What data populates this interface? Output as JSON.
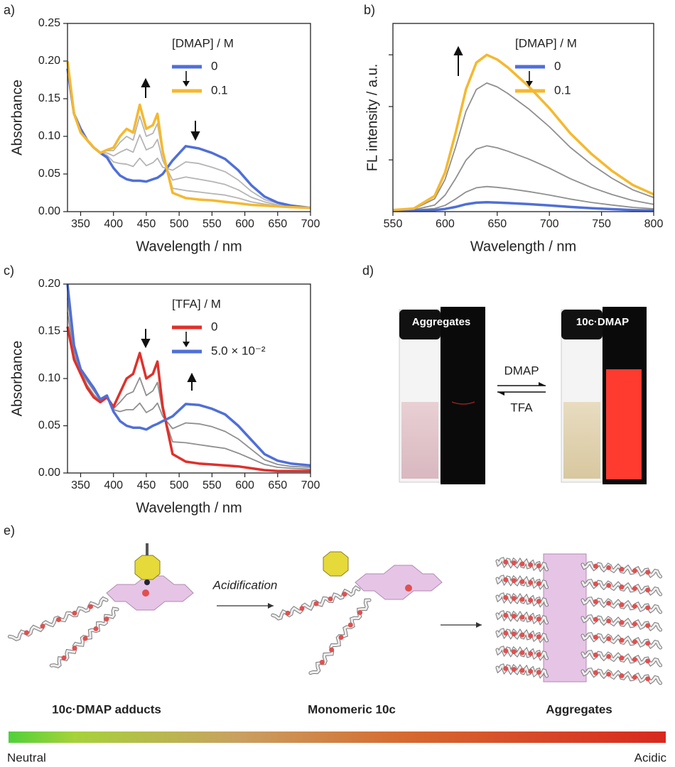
{
  "chart_data": [
    {
      "type": "line",
      "panel_label": "a)",
      "xlabel": "Wavelength / nm",
      "ylabel": "Absorbance",
      "legend_title": "[DMAP] / M",
      "legend": "upper right",
      "x": [
        330,
        340,
        350,
        360,
        370,
        380,
        390,
        400,
        410,
        420,
        430,
        440,
        450,
        460,
        467,
        475,
        490,
        510,
        530,
        550,
        570,
        590,
        610,
        630,
        650,
        670,
        700
      ],
      "xlim": [
        330,
        700
      ],
      "xticks": [
        350,
        400,
        450,
        500,
        550,
        600,
        650,
        700
      ],
      "ylim": [
        0,
        0.25
      ],
      "yticks": [
        {
          "value": 0,
          "label": "0.00"
        },
        0.05,
        {
          "value": 0.1,
          "label": "0.10"
        },
        0.15,
        {
          "value": 0.2,
          "label": "0.20"
        },
        0.25
      ],
      "series": [
        {
          "color": "#b5b5b5",
          "values": [
            0.193,
            0.13,
            0.109,
            0.095,
            0.085,
            0.078,
            0.075,
            0.066,
            0.064,
            0.063,
            0.06,
            0.071,
            0.061,
            0.065,
            0.071,
            0.059,
            0.055,
            0.066,
            0.064,
            0.059,
            0.053,
            0.042,
            0.027,
            0.016,
            0.011,
            0.007,
            0.005
          ]
        },
        {
          "color": "#b5b5b5",
          "values": [
            0.196,
            0.13,
            0.107,
            0.095,
            0.085,
            0.078,
            0.078,
            0.074,
            0.079,
            0.083,
            0.079,
            0.102,
            0.082,
            0.086,
            0.096,
            0.068,
            0.042,
            0.046,
            0.043,
            0.04,
            0.036,
            0.029,
            0.019,
            0.013,
            0.009,
            0.007,
            0.005
          ]
        },
        {
          "color": "#b5b5b5",
          "values": [
            0.199,
            0.13,
            0.106,
            0.095,
            0.085,
            0.078,
            0.081,
            0.081,
            0.092,
            0.1,
            0.095,
            0.127,
            0.1,
            0.104,
            0.117,
            0.076,
            0.031,
            0.028,
            0.026,
            0.024,
            0.022,
            0.018,
            0.013,
            0.01,
            0.008,
            0.006,
            0.005
          ]
        },
        {
          "name": "0",
          "color": "#4f6fd8",
          "values": [
            0.19,
            0.13,
            0.11,
            0.095,
            0.085,
            0.078,
            0.072,
            0.058,
            0.048,
            0.043,
            0.041,
            0.041,
            0.04,
            0.043,
            0.045,
            0.05,
            0.068,
            0.087,
            0.084,
            0.078,
            0.07,
            0.055,
            0.035,
            0.02,
            0.012,
            0.008,
            0.005
          ]
        },
        {
          "name": "0.1",
          "color": "#f5b82e",
          "values": [
            0.2,
            0.13,
            0.105,
            0.095,
            0.085,
            0.078,
            0.082,
            0.085,
            0.1,
            0.11,
            0.105,
            0.142,
            0.11,
            0.115,
            0.13,
            0.08,
            0.025,
            0.018,
            0.016,
            0.015,
            0.013,
            0.011,
            0.009,
            0.008,
            0.007,
            0.006,
            0.005
          ]
        }
      ]
    },
    {
      "type": "line",
      "panel_label": "b)",
      "xlabel": "Wavelength / nm",
      "ylabel": "FL intensity / a.u.",
      "legend_title": "[DMAP] / M",
      "legend": "upper right",
      "x": [
        550,
        570,
        590,
        600,
        610,
        620,
        630,
        640,
        650,
        660,
        680,
        700,
        720,
        740,
        760,
        780,
        800
      ],
      "xlim": [
        550,
        800
      ],
      "xticks": [
        550,
        600,
        650,
        700,
        750,
        800
      ],
      "ylim": [
        0,
        1.2
      ],
      "yticks": [
        0.33,
        0.67,
        1.0
      ],
      "ytick_labels": false,
      "series": [
        {
          "color": "#8f8f8f",
          "values": [
            0.008,
            0.01,
            0.02,
            0.04,
            0.08,
            0.125,
            0.152,
            0.16,
            0.155,
            0.147,
            0.128,
            0.106,
            0.08,
            0.059,
            0.042,
            0.027,
            0.018
          ]
        },
        {
          "color": "#8f8f8f",
          "values": [
            0.01,
            0.012,
            0.042,
            0.105,
            0.21,
            0.328,
            0.399,
            0.42,
            0.407,
            0.386,
            0.336,
            0.277,
            0.21,
            0.155,
            0.109,
            0.071,
            0.046
          ]
        },
        {
          "color": "#8f8f8f",
          "values": [
            0.01,
            0.016,
            0.082,
            0.205,
            0.41,
            0.64,
            0.779,
            0.82,
            0.795,
            0.754,
            0.656,
            0.541,
            0.41,
            0.303,
            0.213,
            0.139,
            0.09
          ]
        },
        {
          "name": "0",
          "color": "#4f6fd8",
          "values": [
            0.005,
            0.006,
            0.01,
            0.017,
            0.03,
            0.047,
            0.057,
            0.06,
            0.058,
            0.055,
            0.048,
            0.04,
            0.03,
            0.022,
            0.016,
            0.01,
            0.007
          ]
        },
        {
          "name": "0.1",
          "color": "#f5b82e",
          "values": [
            0.01,
            0.02,
            0.1,
            0.25,
            0.5,
            0.78,
            0.95,
            1.0,
            0.97,
            0.92,
            0.8,
            0.66,
            0.5,
            0.37,
            0.26,
            0.17,
            0.11
          ]
        }
      ]
    },
    {
      "type": "line",
      "panel_label": "c)",
      "xlabel": "Wavelength / nm",
      "ylabel": "Absorbance",
      "legend_title": "[TFA] / M",
      "legend": "upper right",
      "x": [
        330,
        340,
        350,
        360,
        370,
        380,
        390,
        400,
        410,
        420,
        430,
        440,
        450,
        460,
        467,
        475,
        490,
        510,
        530,
        550,
        570,
        590,
        610,
        630,
        650,
        670,
        700
      ],
      "xlim": [
        330,
        700
      ],
      "xticks": [
        350,
        400,
        450,
        500,
        550,
        600,
        650,
        700
      ],
      "ylim": [
        0,
        0.2
      ],
      "yticks": [
        {
          "value": 0,
          "label": "0.00"
        },
        0.05,
        {
          "value": 0.1,
          "label": "0.10"
        },
        0.15,
        {
          "value": 0.2,
          "label": "0.20"
        }
      ],
      "series": [
        {
          "color": "#8f8f8f",
          "values": [
            0.17,
            0.125,
            0.107,
            0.093,
            0.083,
            0.076,
            0.081,
            0.068,
            0.075,
            0.083,
            0.086,
            0.101,
            0.082,
            0.087,
            0.096,
            0.065,
            0.033,
            0.032,
            0.03,
            0.028,
            0.026,
            0.021,
            0.015,
            0.009,
            0.006,
            0.005,
            0.004
          ]
        },
        {
          "color": "#8f8f8f",
          "values": [
            0.185,
            0.13,
            0.108,
            0.097,
            0.087,
            0.077,
            0.081,
            0.067,
            0.065,
            0.067,
            0.067,
            0.074,
            0.064,
            0.068,
            0.074,
            0.06,
            0.047,
            0.053,
            0.052,
            0.049,
            0.044,
            0.036,
            0.025,
            0.014,
            0.009,
            0.007,
            0.006
          ]
        },
        {
          "name": "0",
          "color": "#e0302b",
          "values": [
            0.155,
            0.12,
            0.105,
            0.09,
            0.08,
            0.075,
            0.08,
            0.07,
            0.085,
            0.1,
            0.105,
            0.127,
            0.1,
            0.105,
            0.118,
            0.07,
            0.02,
            0.012,
            0.01,
            0.009,
            0.008,
            0.007,
            0.005,
            0.003,
            0.002,
            0.002,
            0.002
          ]
        },
        {
          "name": "5.0 × 10⁻²",
          "color": "#4f6fd8",
          "values": [
            0.2,
            0.135,
            0.11,
            0.1,
            0.09,
            0.078,
            0.082,
            0.065,
            0.055,
            0.05,
            0.048,
            0.048,
            0.046,
            0.05,
            0.052,
            0.055,
            0.06,
            0.073,
            0.072,
            0.068,
            0.062,
            0.05,
            0.035,
            0.02,
            0.013,
            0.01,
            0.008
          ]
        }
      ]
    }
  ],
  "photo_panel": {
    "panel_label": "d)",
    "left_label": "Aggregates",
    "right_label": "10c·DMAP",
    "forward": "DMAP",
    "backward": "TFA"
  },
  "scheme_panel": {
    "panel_label": "e)",
    "step": "Acidification",
    "captions": [
      "10c·DMAP adducts",
      "Monomeric 10c",
      "Aggregates"
    ],
    "scale_left": "Neutral",
    "scale_right": "Acidic"
  }
}
